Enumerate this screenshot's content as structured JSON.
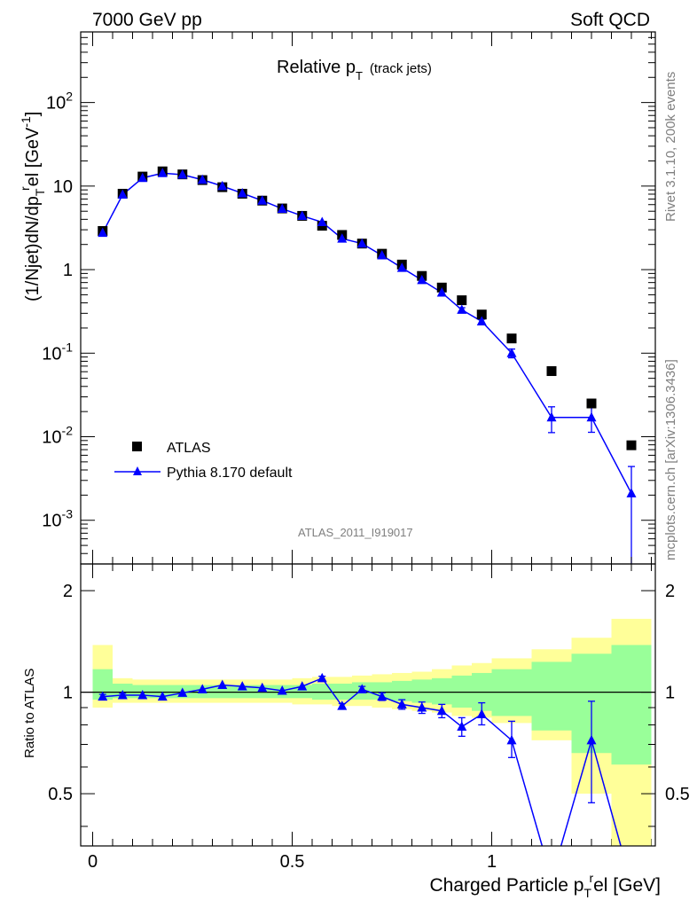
{
  "header": {
    "left": "7000 GeV pp",
    "right": "Soft QCD"
  },
  "side_labels": {
    "rivet": "Rivet 3.1.10,  200k events",
    "mcplots": "mcplots.cern.ch [arXiv:1306.3436]"
  },
  "analysis_id": "ATLAS_2011_I919017",
  "colors": {
    "mc": "#0000ff",
    "data": "#000000",
    "band_inner": "#99ff99",
    "band_outer": "#ffff99"
  },
  "chart_data": [
    {
      "type": "scatter",
      "title": "Relative p_T (track jets)",
      "title_parts": {
        "main": "Relative p",
        "sub": "T",
        "note": "(track jets)"
      },
      "ylabel": "(1/Njet)dN/dp_T^rel [GeV^-1]",
      "ylabel_parts": {
        "a": "(1/Njet)dN/dp",
        "sub": "T",
        "sup": "r",
        "b": "el [GeV",
        "sup2": "-1",
        "c": "]"
      },
      "xlim": [
        -0.03,
        1.41
      ],
      "ylim": [
        0.0003,
        700
      ],
      "log_y": true,
      "y_ticks": [
        {
          "base": "10",
          "exp": "-3",
          "value": 0.001
        },
        {
          "base": "10",
          "exp": "-2",
          "value": 0.01
        },
        {
          "base": "10",
          "exp": "-1",
          "value": 0.1
        },
        {
          "base": "1",
          "exp": "",
          "value": 1
        },
        {
          "base": "10",
          "exp": "",
          "value": 10
        },
        {
          "base": "10",
          "exp": "2",
          "value": 100
        }
      ],
      "legend": {
        "position": "lower-left",
        "entries": [
          "ATLAS",
          "Pythia 8.170 default"
        ]
      },
      "series": [
        {
          "name": "ATLAS",
          "marker": "square",
          "x": [
            0.025,
            0.075,
            0.125,
            0.175,
            0.225,
            0.275,
            0.325,
            0.375,
            0.425,
            0.475,
            0.525,
            0.575,
            0.625,
            0.675,
            0.725,
            0.775,
            0.825,
            0.875,
            0.925,
            0.975,
            1.05,
            1.15,
            1.25,
            1.35
          ],
          "y": [
            2.9,
            8.1,
            13.0,
            15.0,
            13.8,
            11.8,
            9.7,
            8.1,
            6.7,
            5.4,
            4.4,
            3.35,
            2.6,
            2.05,
            1.55,
            1.15,
            0.84,
            0.61,
            0.43,
            0.29,
            0.15,
            0.061,
            0.025,
            0.0079
          ]
        },
        {
          "name": "Pythia 8.170 default",
          "marker": "triangle",
          "x": [
            0.025,
            0.075,
            0.125,
            0.175,
            0.225,
            0.275,
            0.325,
            0.375,
            0.425,
            0.475,
            0.525,
            0.575,
            0.625,
            0.675,
            0.725,
            0.775,
            0.825,
            0.875,
            0.925,
            0.975,
            1.05,
            1.15,
            1.25,
            1.35
          ],
          "y": [
            2.75,
            7.9,
            12.5,
            14.3,
            13.7,
            11.9,
            10.0,
            8.2,
            6.7,
            5.35,
            4.4,
            3.7,
            2.35,
            2.05,
            1.48,
            1.05,
            0.75,
            0.53,
            0.33,
            0.24,
            0.1,
            0.017,
            0.017,
            0.0021
          ],
          "y_err_low": [
            0.04,
            0.07,
            0.1,
            0.1,
            0.1,
            0.09,
            0.08,
            0.07,
            0.06,
            0.05,
            0.05,
            0.05,
            0.04,
            0.03,
            0.03,
            0.02,
            0.02,
            0.02,
            0.02,
            0.015,
            0.012,
            0.0058,
            0.0057,
            0.0021
          ],
          "y_err_high": [
            0.04,
            0.07,
            0.1,
            0.1,
            0.1,
            0.09,
            0.08,
            0.07,
            0.06,
            0.05,
            0.05,
            0.05,
            0.04,
            0.03,
            0.03,
            0.02,
            0.02,
            0.02,
            0.02,
            0.015,
            0.012,
            0.0058,
            0.0057,
            0.0023
          ]
        }
      ]
    },
    {
      "type": "line",
      "ylabel": "Ratio to ATLAS",
      "xlabel": "Charged Particle p_T^rel [GeV]",
      "xlabel_parts": {
        "a": "Charged Particle p",
        "sub": "T",
        "sup": "r",
        "b": "el [GeV]"
      },
      "xlim": [
        -0.03,
        1.41
      ],
      "ylim": [
        0.35,
        2.4
      ],
      "log_y": true,
      "x_ticks": [
        "0",
        "0.5",
        "1"
      ],
      "x_tick_values": [
        0,
        0.5,
        1
      ],
      "y_ticks": [
        "0.5",
        "1",
        "2"
      ],
      "y_tick_values": [
        0.5,
        1,
        2
      ],
      "bins": [
        [
          0.0,
          0.05
        ],
        [
          0.05,
          0.1
        ],
        [
          0.1,
          0.15
        ],
        [
          0.15,
          0.2
        ],
        [
          0.2,
          0.25
        ],
        [
          0.25,
          0.3
        ],
        [
          0.3,
          0.35
        ],
        [
          0.35,
          0.4
        ],
        [
          0.4,
          0.45
        ],
        [
          0.45,
          0.5
        ],
        [
          0.5,
          0.55
        ],
        [
          0.55,
          0.6
        ],
        [
          0.6,
          0.65
        ],
        [
          0.65,
          0.7
        ],
        [
          0.7,
          0.75
        ],
        [
          0.75,
          0.8
        ],
        [
          0.8,
          0.85
        ],
        [
          0.85,
          0.9
        ],
        [
          0.9,
          0.95
        ],
        [
          0.95,
          1.0
        ],
        [
          1.0,
          1.1
        ],
        [
          1.1,
          1.2
        ],
        [
          1.2,
          1.3
        ],
        [
          1.3,
          1.4
        ]
      ],
      "band_stat_low": [
        0.95,
        0.96,
        0.96,
        0.96,
        0.96,
        0.96,
        0.96,
        0.96,
        0.96,
        0.96,
        0.96,
        0.95,
        0.95,
        0.95,
        0.95,
        0.94,
        0.93,
        0.92,
        0.9,
        0.88,
        0.85,
        0.77,
        0.66,
        0.61
      ],
      "band_stat_high": [
        1.17,
        1.06,
        1.05,
        1.05,
        1.05,
        1.05,
        1.05,
        1.05,
        1.05,
        1.05,
        1.05,
        1.06,
        1.06,
        1.07,
        1.07,
        1.08,
        1.09,
        1.1,
        1.12,
        1.14,
        1.17,
        1.23,
        1.3,
        1.38
      ],
      "band_total_low": [
        0.9,
        0.93,
        0.93,
        0.93,
        0.93,
        0.93,
        0.93,
        0.93,
        0.93,
        0.93,
        0.92,
        0.92,
        0.91,
        0.91,
        0.9,
        0.89,
        0.88,
        0.87,
        0.85,
        0.84,
        0.81,
        0.72,
        0.5,
        0.33
      ],
      "band_total_high": [
        1.38,
        1.1,
        1.09,
        1.09,
        1.09,
        1.09,
        1.09,
        1.09,
        1.09,
        1.09,
        1.1,
        1.11,
        1.11,
        1.12,
        1.13,
        1.14,
        1.15,
        1.17,
        1.2,
        1.22,
        1.26,
        1.34,
        1.45,
        1.65
      ],
      "series": [
        {
          "name": "Pythia 8.170 default",
          "x": [
            0.025,
            0.075,
            0.125,
            0.175,
            0.225,
            0.275,
            0.325,
            0.375,
            0.425,
            0.475,
            0.525,
            0.575,
            0.625,
            0.675,
            0.725,
            0.775,
            0.825,
            0.875,
            0.925,
            0.975,
            1.05,
            1.15,
            1.25,
            1.35
          ],
          "y": [
            0.97,
            0.98,
            0.98,
            0.97,
            0.995,
            1.02,
            1.05,
            1.04,
            1.03,
            1.01,
            1.04,
            1.1,
            0.91,
            1.02,
            0.97,
            0.92,
            0.9,
            0.88,
            0.79,
            0.86,
            0.72,
            0.28,
            0.72,
            0.27
          ],
          "y_err_low": [
            0.015,
            0.012,
            0.01,
            0.01,
            0.01,
            0.01,
            0.01,
            0.01,
            0.01,
            0.01,
            0.012,
            0.015,
            0.015,
            0.02,
            0.025,
            0.03,
            0.035,
            0.04,
            0.05,
            0.06,
            0.08,
            0.0,
            0.25,
            0.0
          ],
          "y_err_high": [
            0.015,
            0.012,
            0.01,
            0.01,
            0.01,
            0.01,
            0.01,
            0.01,
            0.01,
            0.01,
            0.012,
            0.015,
            0.015,
            0.02,
            0.025,
            0.03,
            0.035,
            0.04,
            0.05,
            0.07,
            0.1,
            0.0,
            0.22,
            0.0
          ]
        }
      ],
      "reference_line": 1
    }
  ]
}
